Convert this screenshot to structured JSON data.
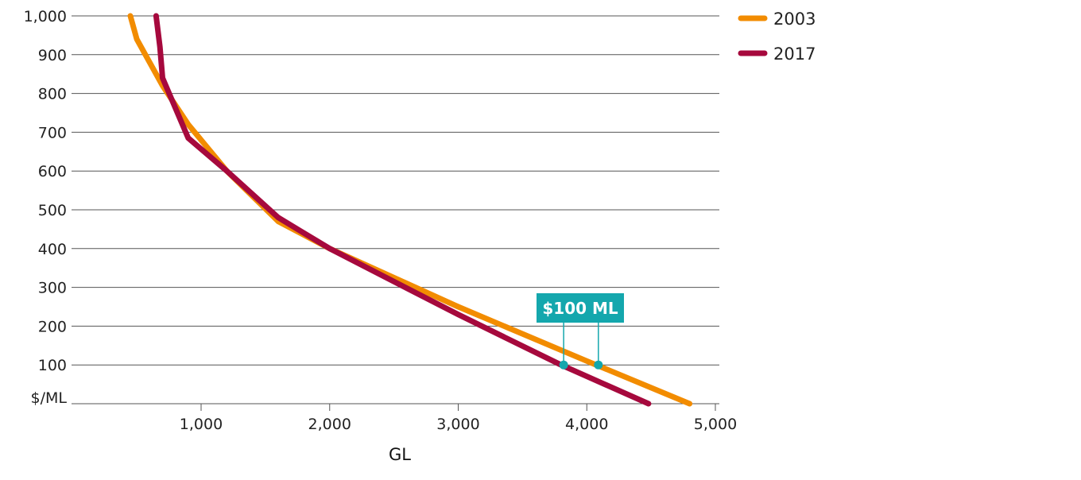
{
  "chart_data": {
    "type": "line",
    "title": "",
    "xlabel": "GL",
    "ylabel": "$/ML",
    "xlim": [
      0,
      5000
    ],
    "ylim": [
      0,
      1000
    ],
    "xticks": [
      "1,000",
      "2,000",
      "3,000",
      "4,000",
      "5,000"
    ],
    "xtick_values": [
      1000,
      2000,
      3000,
      4000,
      5000
    ],
    "yticks": [
      "100",
      "200",
      "300",
      "400",
      "500",
      "600",
      "700",
      "800",
      "900",
      "1,000"
    ],
    "ytick_values": [
      100,
      200,
      300,
      400,
      500,
      600,
      700,
      800,
      900,
      1000
    ],
    "grid": "horizontal",
    "legend_position": "top-right",
    "series": [
      {
        "name": "2003",
        "color": "#F28C00",
        "points": [
          [
            450,
            1000
          ],
          [
            500,
            940
          ],
          [
            600,
            880
          ],
          [
            700,
            820
          ],
          [
            900,
            720
          ],
          [
            1200,
            600
          ],
          [
            1600,
            470
          ],
          [
            2000,
            400
          ],
          [
            3000,
            250
          ],
          [
            4000,
            110
          ],
          [
            4800,
            0
          ]
        ]
      },
      {
        "name": "2017",
        "color": "#A6093D",
        "points": [
          [
            650,
            1000
          ],
          [
            680,
            920
          ],
          [
            700,
            840
          ],
          [
            900,
            685
          ],
          [
            1200,
            600
          ],
          [
            1600,
            480
          ],
          [
            2000,
            400
          ],
          [
            3000,
            230
          ],
          [
            3800,
            100
          ],
          [
            4480,
            0
          ]
        ]
      }
    ],
    "annotation": {
      "label": "$100 ML",
      "color": "#14A7AD",
      "y": 100,
      "points_x": [
        3820,
        4090
      ]
    }
  }
}
